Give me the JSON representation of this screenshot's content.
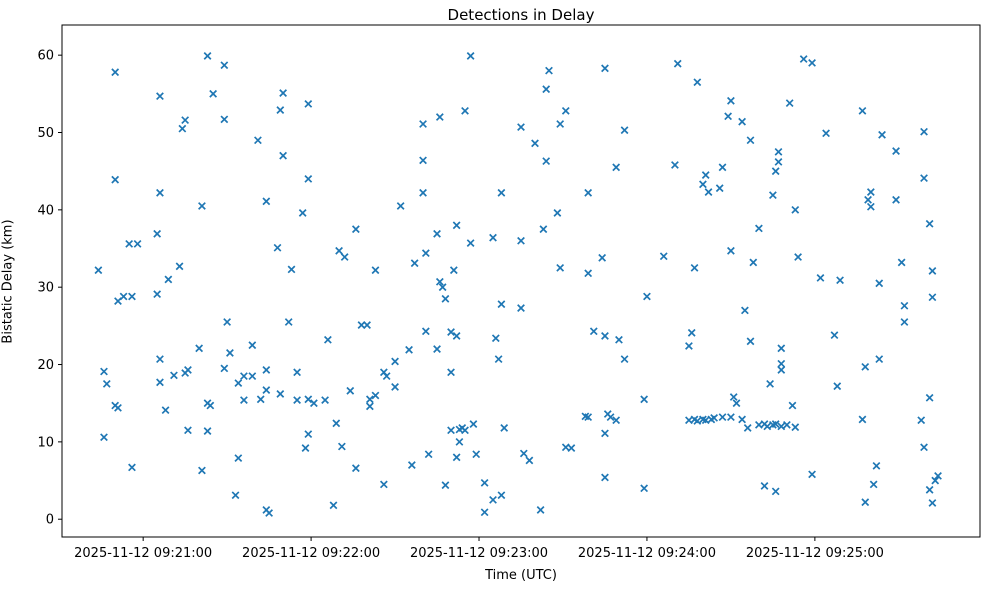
{
  "title": "Detections in Delay",
  "x_label": "Time (UTC)",
  "y_label": "Bistatic Delay (km)",
  "colors": {
    "marker": "#1f77b4",
    "axis": "#000000",
    "background": "#ffffff"
  },
  "chart_data": {
    "type": "scatter",
    "title": "Detections in Delay",
    "xlabel": "Time (UTC)",
    "ylabel": "Bistatic Delay (km)",
    "marker_style": "x",
    "marker_color": "#1f77b4",
    "grid": false,
    "legend": "none",
    "x_unit": "seconds after 2025-11-12 09:20:00 UTC",
    "xlim": [
      31,
      359
    ],
    "ylim": [
      -2.3,
      63.9
    ],
    "x_ticks": [
      {
        "value": 60,
        "label": "2025-11-12 09:21:00"
      },
      {
        "value": 120,
        "label": "2025-11-12 09:22:00"
      },
      {
        "value": 180,
        "label": "2025-11-12 09:23:00"
      },
      {
        "value": 240,
        "label": "2025-11-12 09:24:00"
      },
      {
        "value": 300,
        "label": "2025-11-12 09:25:00"
      }
    ],
    "y_ticks": [
      0,
      10,
      20,
      30,
      40,
      50,
      60
    ],
    "points": [
      [
        50,
        57.8
      ],
      [
        83,
        59.9
      ],
      [
        89,
        58.7
      ],
      [
        66,
        54.7
      ],
      [
        85,
        55.0
      ],
      [
        110,
        55.1
      ],
      [
        109,
        52.9
      ],
      [
        75,
        51.6
      ],
      [
        74,
        50.5
      ],
      [
        89,
        51.7
      ],
      [
        101,
        49.0
      ],
      [
        110,
        47.0
      ],
      [
        50,
        43.9
      ],
      [
        66,
        42.2
      ],
      [
        177,
        59.9
      ],
      [
        119,
        53.7
      ],
      [
        175,
        52.8
      ],
      [
        166,
        52.0
      ],
      [
        160,
        51.1
      ],
      [
        195,
        50.7
      ],
      [
        160,
        46.4
      ],
      [
        119,
        44.0
      ],
      [
        160,
        42.2
      ],
      [
        188,
        42.2
      ],
      [
        205,
        58.0
      ],
      [
        225,
        58.3
      ],
      [
        251,
        58.9
      ],
      [
        204,
        55.6
      ],
      [
        258,
        56.5
      ],
      [
        211,
        52.8
      ],
      [
        209,
        51.1
      ],
      [
        232,
        50.3
      ],
      [
        270,
        54.1
      ],
      [
        269,
        52.1
      ],
      [
        274,
        51.4
      ],
      [
        277,
        49.0
      ],
      [
        200,
        48.6
      ],
      [
        204,
        46.3
      ],
      [
        229,
        45.5
      ],
      [
        250,
        45.8
      ],
      [
        267,
        45.5
      ],
      [
        261,
        44.5
      ],
      [
        260,
        43.3
      ],
      [
        266,
        42.8
      ],
      [
        262,
        42.3
      ],
      [
        219,
        42.2
      ],
      [
        296,
        59.5
      ],
      [
        299,
        59.0
      ],
      [
        291,
        53.8
      ],
      [
        317,
        52.8
      ],
      [
        304,
        49.9
      ],
      [
        324,
        49.7
      ],
      [
        339,
        50.1
      ],
      [
        329,
        47.6
      ],
      [
        287,
        47.5
      ],
      [
        287,
        46.2
      ],
      [
        286,
        45.0
      ],
      [
        339,
        44.1
      ],
      [
        285,
        41.9
      ],
      [
        81,
        40.5
      ],
      [
        104,
        41.1
      ],
      [
        65,
        36.9
      ],
      [
        55,
        35.6
      ],
      [
        58,
        35.6
      ],
      [
        44,
        32.2
      ],
      [
        73,
        32.7
      ],
      [
        69,
        31.0
      ],
      [
        108,
        35.1
      ],
      [
        51,
        28.2
      ],
      [
        53,
        28.8
      ],
      [
        56,
        28.8
      ],
      [
        65,
        29.1
      ],
      [
        90,
        25.5
      ],
      [
        80,
        22.1
      ],
      [
        99,
        22.5
      ],
      [
        91,
        21.5
      ],
      [
        66,
        20.7
      ],
      [
        152,
        40.5
      ],
      [
        117,
        39.6
      ],
      [
        136,
        37.5
      ],
      [
        172,
        38.0
      ],
      [
        165,
        36.9
      ],
      [
        177,
        35.7
      ],
      [
        185,
        36.4
      ],
      [
        195,
        36.0
      ],
      [
        130,
        34.7
      ],
      [
        132,
        33.9
      ],
      [
        161,
        34.4
      ],
      [
        157,
        33.1
      ],
      [
        113,
        32.3
      ],
      [
        143,
        32.2
      ],
      [
        171,
        32.2
      ],
      [
        166,
        30.7
      ],
      [
        167,
        30.0
      ],
      [
        168,
        28.5
      ],
      [
        188,
        27.8
      ],
      [
        112,
        25.5
      ],
      [
        138,
        25.1
      ],
      [
        140,
        25.1
      ],
      [
        161,
        24.3
      ],
      [
        170,
        24.2
      ],
      [
        172,
        23.7
      ],
      [
        126,
        23.2
      ],
      [
        186,
        23.4
      ],
      [
        155,
        21.9
      ],
      [
        165,
        22.0
      ],
      [
        150,
        20.4
      ],
      [
        187,
        20.7
      ],
      [
        208,
        39.6
      ],
      [
        203,
        37.5
      ],
      [
        224,
        33.8
      ],
      [
        209,
        32.5
      ],
      [
        219,
        31.8
      ],
      [
        246,
        34.0
      ],
      [
        257,
        32.5
      ],
      [
        270,
        34.7
      ],
      [
        240,
        28.8
      ],
      [
        195,
        27.3
      ],
      [
        221,
        24.3
      ],
      [
        225,
        23.7
      ],
      [
        230,
        23.2
      ],
      [
        256,
        24.1
      ],
      [
        255,
        22.4
      ],
      [
        275,
        27.0
      ],
      [
        277,
        23.0
      ],
      [
        232,
        20.7
      ],
      [
        278,
        33.2
      ],
      [
        294,
        33.9
      ],
      [
        331,
        33.2
      ],
      [
        302,
        31.2
      ],
      [
        309,
        30.9
      ],
      [
        323,
        30.5
      ],
      [
        342,
        32.1
      ],
      [
        342,
        28.7
      ],
      [
        332,
        27.6
      ],
      [
        332,
        25.5
      ],
      [
        307,
        23.8
      ],
      [
        288,
        22.1
      ],
      [
        320,
        42.3
      ],
      [
        319,
        41.3
      ],
      [
        320,
        40.4
      ],
      [
        329,
        41.3
      ],
      [
        293,
        40.0
      ],
      [
        280,
        37.6
      ],
      [
        341,
        38.2
      ],
      [
        323,
        20.7
      ],
      [
        46,
        19.1
      ],
      [
        47,
        17.5
      ],
      [
        50,
        14.7
      ],
      [
        51,
        14.4
      ],
      [
        66,
        17.7
      ],
      [
        71,
        18.6
      ],
      [
        75,
        18.9
      ],
      [
        76,
        19.3
      ],
      [
        89,
        19.5
      ],
      [
        94,
        17.6
      ],
      [
        96,
        18.5
      ],
      [
        99,
        18.5
      ],
      [
        104,
        19.3
      ],
      [
        104,
        16.7
      ],
      [
        109,
        16.2
      ],
      [
        96,
        15.4
      ],
      [
        102,
        15.5
      ],
      [
        83,
        15.0
      ],
      [
        84,
        14.7
      ],
      [
        68,
        14.1
      ],
      [
        46,
        10.6
      ],
      [
        76,
        11.5
      ],
      [
        83,
        11.4
      ],
      [
        56,
        6.7
      ],
      [
        81,
        6.3
      ],
      [
        94,
        7.9
      ],
      [
        93,
        3.1
      ],
      [
        104,
        1.2
      ],
      [
        105,
        0.8
      ],
      [
        115,
        19.0
      ],
      [
        146,
        19.0
      ],
      [
        147,
        18.5
      ],
      [
        150,
        17.1
      ],
      [
        170,
        19.0
      ],
      [
        134,
        16.6
      ],
      [
        115,
        15.4
      ],
      [
        119,
        15.5
      ],
      [
        121,
        15.0
      ],
      [
        125,
        15.4
      ],
      [
        141,
        15.5
      ],
      [
        143,
        16.0
      ],
      [
        141,
        14.6
      ],
      [
        129,
        12.4
      ],
      [
        119,
        11.0
      ],
      [
        118,
        9.2
      ],
      [
        131,
        9.4
      ],
      [
        136,
        6.6
      ],
      [
        146,
        4.5
      ],
      [
        128,
        1.8
      ],
      [
        156,
        7.0
      ],
      [
        162,
        8.4
      ],
      [
        170,
        11.5
      ],
      [
        173,
        11.6
      ],
      [
        174,
        11.8
      ],
      [
        175,
        11.5
      ],
      [
        178,
        12.3
      ],
      [
        173,
        10.0
      ],
      [
        172,
        8.0
      ],
      [
        179,
        8.4
      ],
      [
        189,
        11.8
      ],
      [
        168,
        4.4
      ],
      [
        182,
        4.7
      ],
      [
        185,
        2.5
      ],
      [
        188,
        3.1
      ],
      [
        182,
        0.9
      ],
      [
        239,
        15.5
      ],
      [
        218,
        13.3
      ],
      [
        219,
        13.2
      ],
      [
        226,
        13.6
      ],
      [
        227,
        13.2
      ],
      [
        229,
        12.8
      ],
      [
        225,
        11.1
      ],
      [
        211,
        9.3
      ],
      [
        213,
        9.2
      ],
      [
        196,
        8.5
      ],
      [
        198,
        7.6
      ],
      [
        202,
        1.2
      ],
      [
        225,
        5.4
      ],
      [
        239,
        4.0
      ],
      [
        255,
        12.8
      ],
      [
        257,
        12.9
      ],
      [
        258,
        12.7
      ],
      [
        260,
        12.9
      ],
      [
        261,
        12.8
      ],
      [
        263,
        12.9
      ],
      [
        264,
        13.1
      ],
      [
        267,
        13.2
      ],
      [
        270,
        13.2
      ],
      [
        274,
        12.9
      ],
      [
        276,
        11.8
      ],
      [
        271,
        15.8
      ],
      [
        272,
        15.0
      ],
      [
        280,
        12.2
      ],
      [
        282,
        12.3
      ],
      [
        283,
        12.0
      ],
      [
        285,
        12.2
      ],
      [
        286,
        12.3
      ],
      [
        288,
        12.0
      ],
      [
        290,
        12.2
      ],
      [
        293,
        11.9
      ],
      [
        288,
        20.1
      ],
      [
        288,
        19.3
      ],
      [
        284,
        17.5
      ],
      [
        308,
        17.2
      ],
      [
        318,
        19.7
      ],
      [
        292,
        14.7
      ],
      [
        341,
        15.7
      ],
      [
        317,
        12.9
      ],
      [
        338,
        12.8
      ],
      [
        339,
        9.3
      ],
      [
        299,
        5.8
      ],
      [
        282,
        4.3
      ],
      [
        286,
        3.6
      ],
      [
        322,
        6.9
      ],
      [
        321,
        4.5
      ],
      [
        318,
        2.2
      ],
      [
        343,
        5.0
      ],
      [
        344,
        5.6
      ],
      [
        341,
        3.8
      ],
      [
        342,
        2.1
      ]
    ]
  }
}
